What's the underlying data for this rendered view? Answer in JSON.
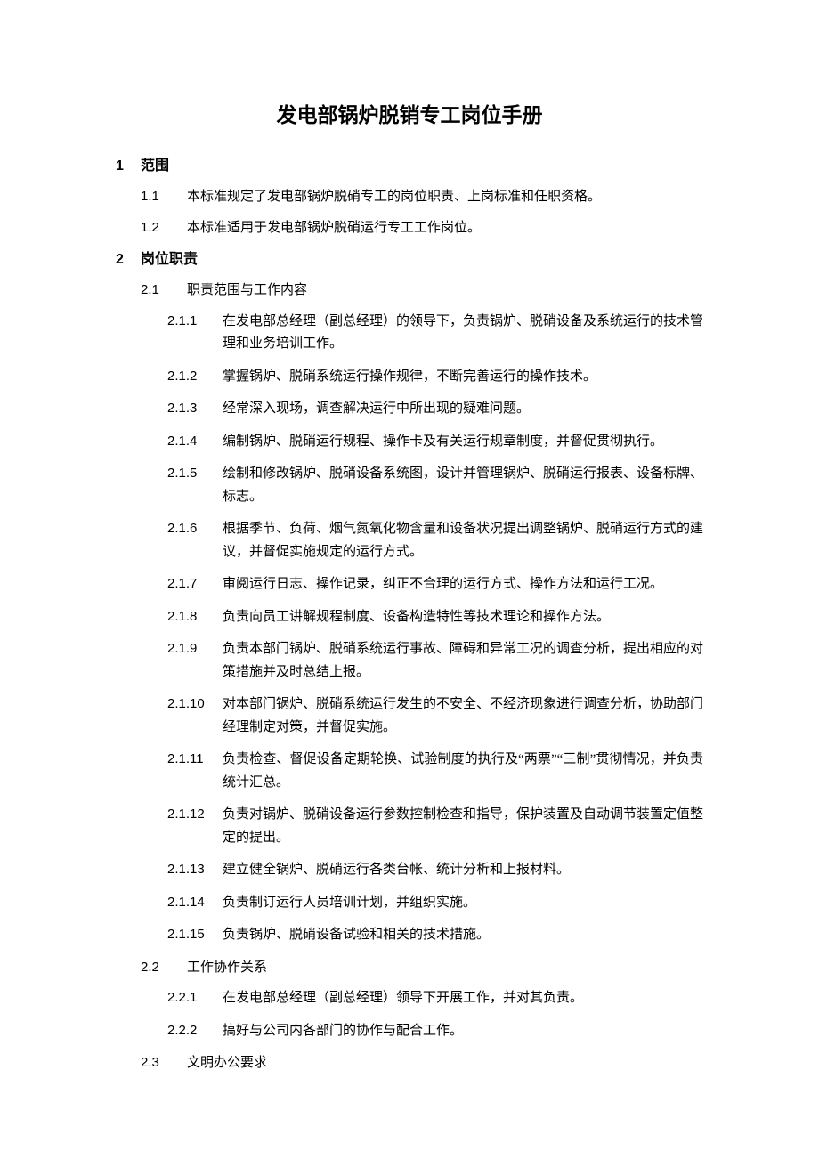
{
  "title": "发电部锅炉脱销专工岗位手册",
  "sections": [
    {
      "number": "1",
      "title": "范围",
      "level1": [
        {
          "number": "1.1",
          "text": "本标准规定了发电部锅炉脱硝专工的岗位职责、上岗标准和任职资格。"
        },
        {
          "number": "1.2",
          "text": "本标准适用于发电部锅炉脱硝运行专工工作岗位。"
        }
      ]
    },
    {
      "number": "2",
      "title": "岗位职责",
      "level1": [
        {
          "number": "2.1",
          "text": "职责范围与工作内容",
          "level2": [
            {
              "number": "2.1.1",
              "text": "在发电部总经理（副总经理）的领导下，负责锅炉、脱硝设备及系统运行的技术管理和业务培训工作。"
            },
            {
              "number": "2.1.2",
              "text": "掌握锅炉、脱硝系统运行操作规律，不断完善运行的操作技术。"
            },
            {
              "number": "2.1.3",
              "text": "经常深入现场，调查解决运行中所出现的疑难问题。"
            },
            {
              "number": "2.1.4",
              "text": "编制锅炉、脱硝运行规程、操作卡及有关运行规章制度，并督促贯彻执行。"
            },
            {
              "number": "2.1.5",
              "text": "绘制和修改锅炉、脱硝设备系统图，设计并管理锅炉、脱硝运行报表、设备标牌、标志。"
            },
            {
              "number": "2.1.6",
              "text": "根据季节、负荷、烟气氮氧化物含量和设备状况提出调整锅炉、脱硝运行方式的建议，并督促实施规定的运行方式。"
            },
            {
              "number": "2.1.7",
              "text": "审阅运行日志、操作记录，纠正不合理的运行方式、操作方法和运行工况。"
            },
            {
              "number": "2.1.8",
              "text": "负责向员工讲解规程制度、设备构造特性等技术理论和操作方法。"
            },
            {
              "number": "2.1.9",
              "text": "负责本部门锅炉、脱硝系统运行事故、障碍和异常工况的调查分析，提出相应的对策措施并及时总结上报。"
            },
            {
              "number": "2.1.10",
              "text": "对本部门锅炉、脱硝系统运行发生的不安全、不经济现象进行调查分析，协助部门经理制定对策，并督促实施。"
            },
            {
              "number": "2.1.11",
              "text": "负责检查、督促设备定期轮换、试验制度的执行及“两票”“三制”贯彻情况，并负责统计汇总。"
            },
            {
              "number": "2.1.12",
              "text": "负责对锅炉、脱硝设备运行参数控制检查和指导，保护装置及自动调节装置定值整定的提出。"
            },
            {
              "number": "2.1.13",
              "text": "建立健全锅炉、脱硝运行各类台帐、统计分析和上报材料。"
            },
            {
              "number": "2.1.14",
              "text": "负责制订运行人员培训计划，并组织实施。"
            },
            {
              "number": "2.1.15",
              "text": "负责锅炉、脱硝设备试验和相关的技术措施。"
            }
          ]
        },
        {
          "number": "2.2",
          "text": "工作协作关系",
          "level2": [
            {
              "number": "2.2.1",
              "text": "在发电部总经理（副总经理）领导下开展工作，并对其负责。"
            },
            {
              "number": "2.2.2",
              "text": "搞好与公司内各部门的协作与配合工作。"
            }
          ]
        },
        {
          "number": "2.3",
          "text": "文明办公要求"
        }
      ]
    }
  ]
}
